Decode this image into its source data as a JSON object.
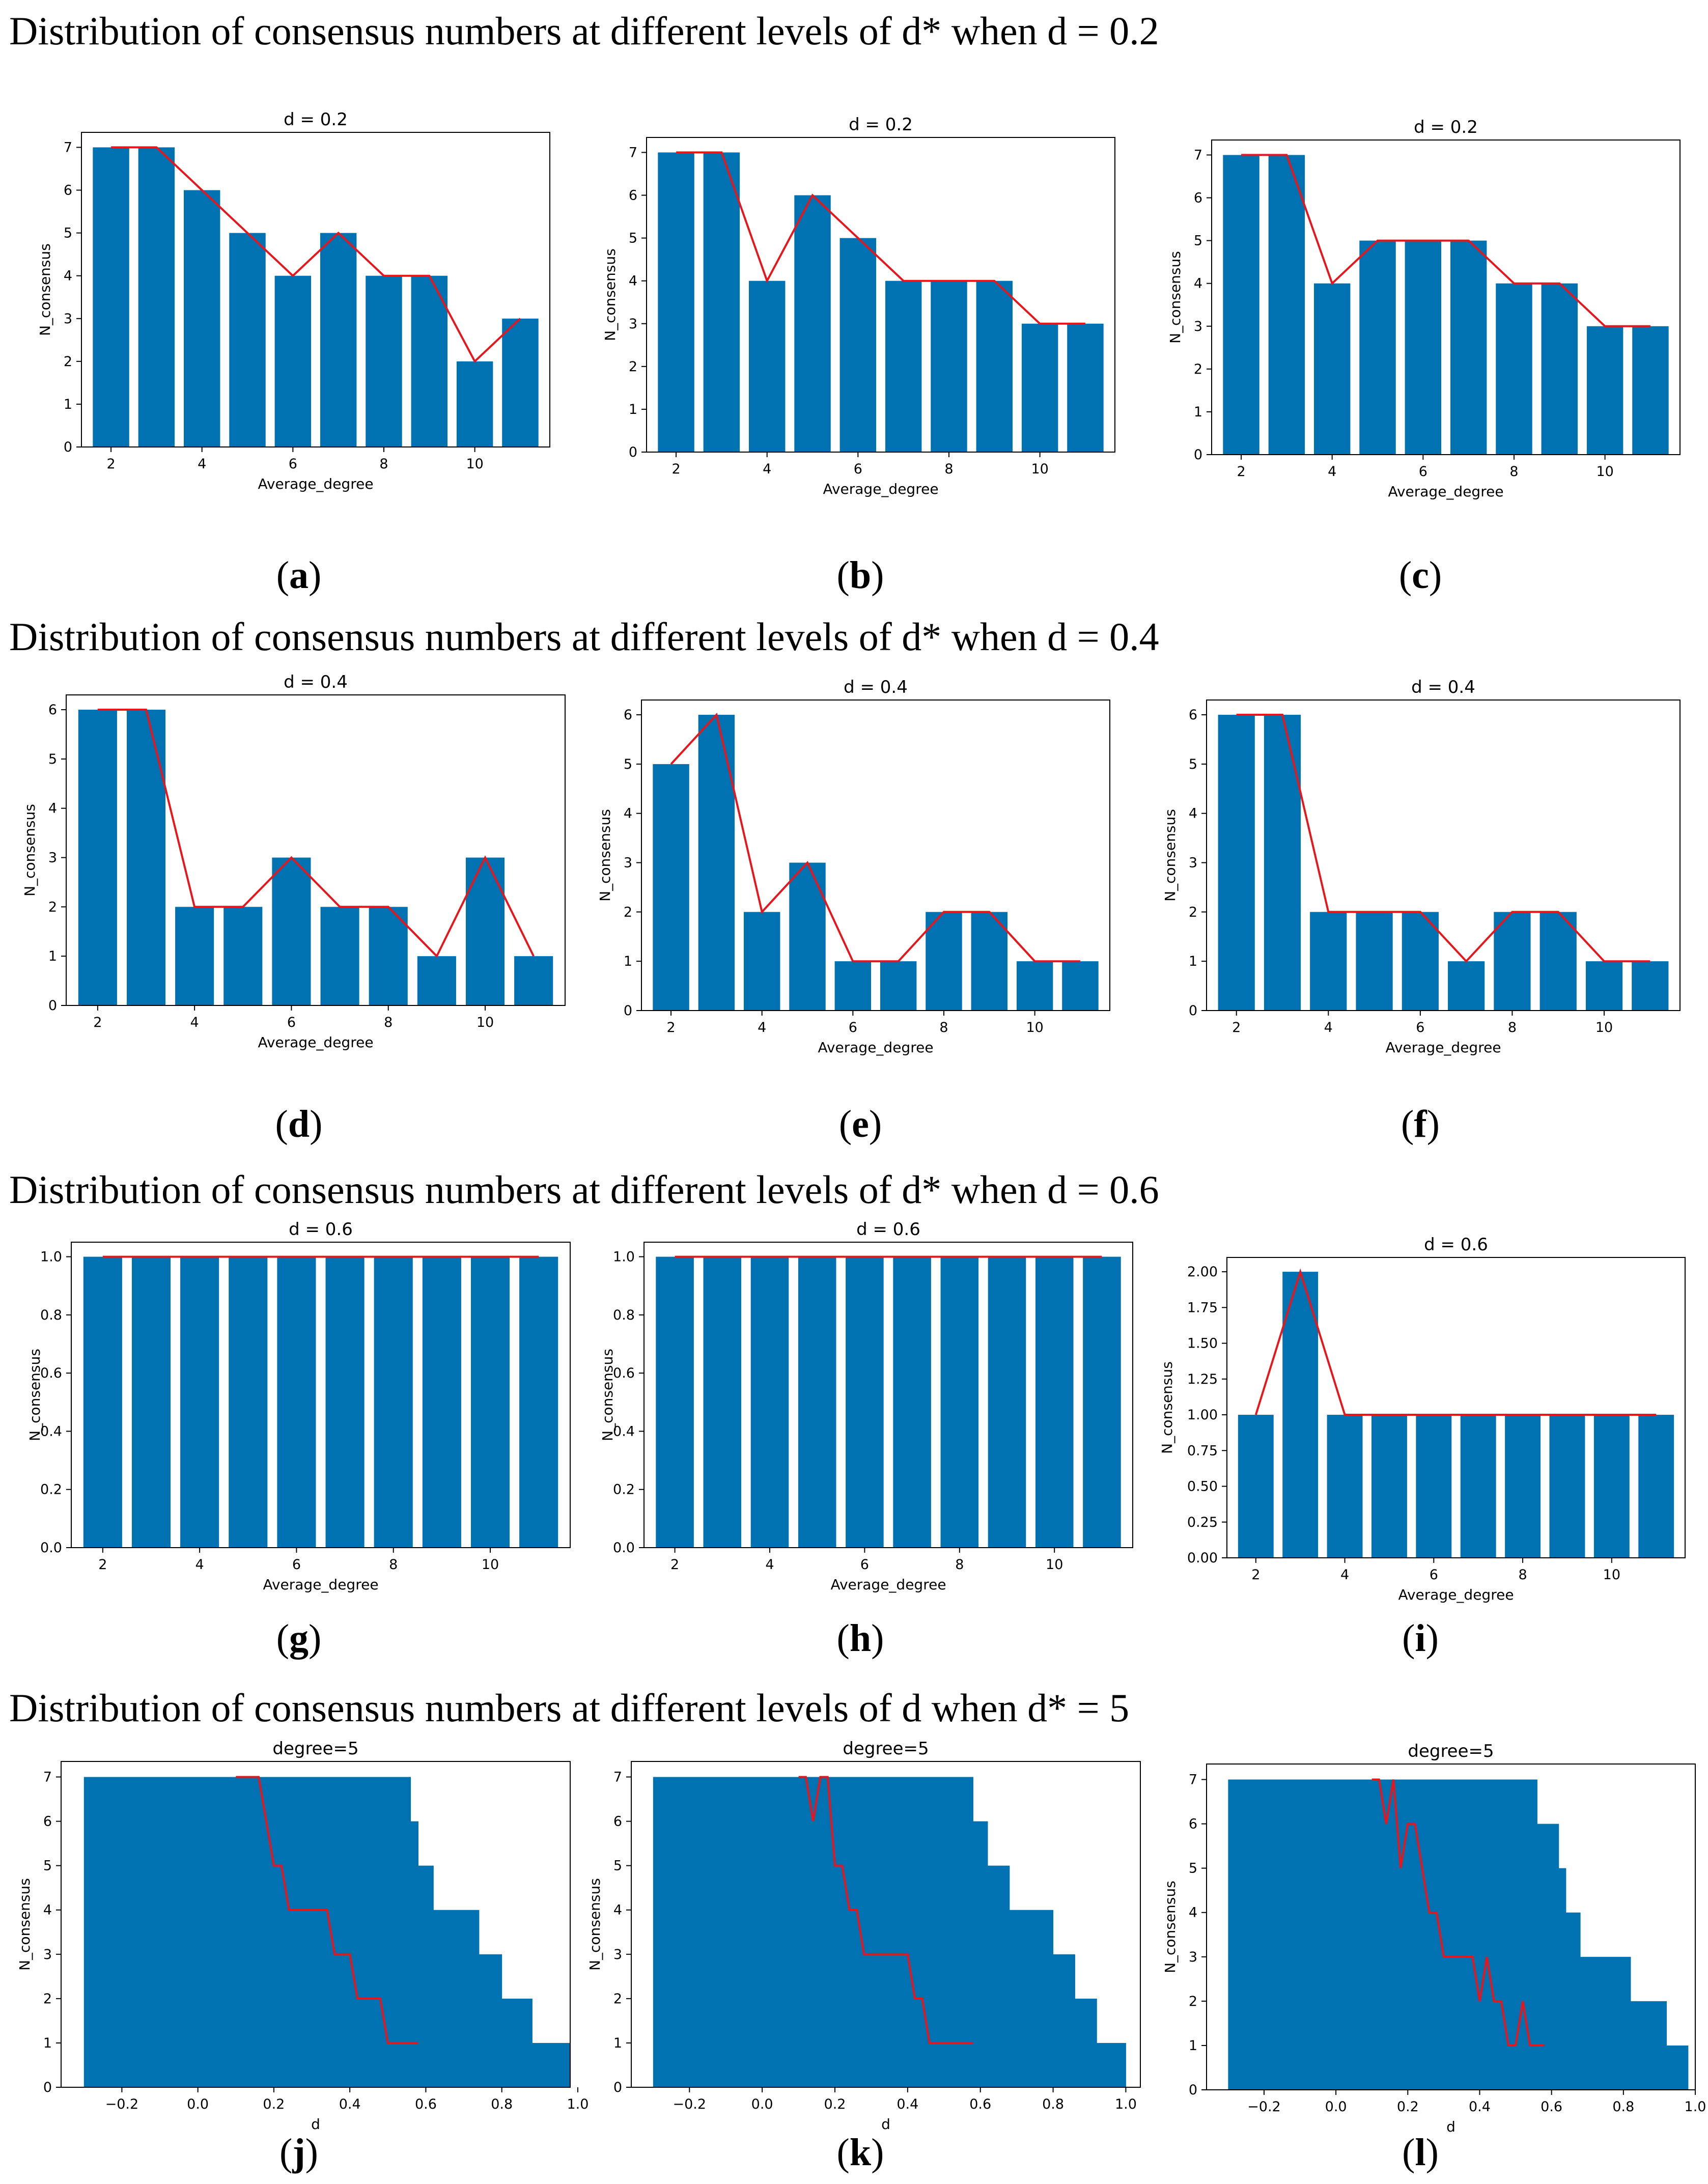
{
  "headings": [
    "Distribution of consensus numbers at different levels of d* when d = 0.2",
    "Distribution of consensus numbers at different levels of d* when d = 0.4",
    "Distribution of consensus numbers at different levels of d* when d = 0.6",
    "Distribution of consensus numbers at different levels of d when d* = 5"
  ],
  "chart_data": [
    {
      "id": "a",
      "caption": "a",
      "type": "bar",
      "title": "d = 0.2",
      "xlabel": "Average_degree",
      "ylabel": "N_consensus",
      "x": [
        2,
        3,
        4,
        5,
        6,
        7,
        8,
        9,
        10,
        11
      ],
      "values": [
        7,
        7,
        6,
        5,
        4,
        5,
        4,
        4,
        2,
        3
      ],
      "line_x": [
        2,
        3,
        4,
        5,
        6,
        7,
        8,
        9,
        10,
        11
      ],
      "line_y": [
        7,
        7,
        6,
        5,
        4,
        5,
        4,
        4,
        2,
        3
      ],
      "xlim": [
        1.35,
        11.65
      ],
      "ylim": [
        0,
        7.35
      ],
      "xticks": [
        2,
        4,
        6,
        8,
        10
      ],
      "xtick_labels": [
        "2",
        "4",
        "6",
        "8",
        "10"
      ],
      "yticks": [
        0,
        1,
        2,
        3,
        4,
        5,
        6,
        7
      ],
      "ytick_labels": [
        "0",
        "1",
        "2",
        "3",
        "4",
        "5",
        "6",
        "7"
      ]
    },
    {
      "id": "b",
      "caption": "b",
      "type": "bar",
      "title": "d = 0.2",
      "xlabel": "Average_degree",
      "ylabel": "N_consensus",
      "x": [
        2,
        3,
        4,
        5,
        6,
        7,
        8,
        9,
        10,
        11
      ],
      "values": [
        7,
        7,
        4,
        6,
        5,
        4,
        4,
        4,
        3,
        3
      ],
      "line_x": [
        2,
        3,
        4,
        5,
        6,
        7,
        8,
        9,
        10,
        11
      ],
      "line_y": [
        7,
        7,
        4,
        6,
        5,
        4,
        4,
        4,
        3,
        3
      ],
      "xlim": [
        1.35,
        11.65
      ],
      "ylim": [
        0,
        7.35
      ],
      "xticks": [
        2,
        4,
        6,
        8,
        10
      ],
      "xtick_labels": [
        "2",
        "4",
        "6",
        "8",
        "10"
      ],
      "yticks": [
        0,
        1,
        2,
        3,
        4,
        5,
        6,
        7
      ],
      "ytick_labels": [
        "0",
        "1",
        "2",
        "3",
        "4",
        "5",
        "6",
        "7"
      ]
    },
    {
      "id": "c",
      "caption": "c",
      "type": "bar",
      "title": "d = 0.2",
      "xlabel": "Average_degree",
      "ylabel": "N_consensus",
      "x": [
        2,
        3,
        4,
        5,
        6,
        7,
        8,
        9,
        10,
        11
      ],
      "values": [
        7,
        7,
        4,
        5,
        5,
        5,
        4,
        4,
        3,
        3
      ],
      "line_x": [
        2,
        3,
        4,
        5,
        6,
        7,
        8,
        9,
        10,
        11
      ],
      "line_y": [
        7,
        7,
        4,
        5,
        5,
        5,
        4,
        4,
        3,
        3
      ],
      "xlim": [
        1.35,
        11.65
      ],
      "ylim": [
        0,
        7.35
      ],
      "xticks": [
        2,
        4,
        6,
        8,
        10
      ],
      "xtick_labels": [
        "2",
        "4",
        "6",
        "8",
        "10"
      ],
      "yticks": [
        0,
        1,
        2,
        3,
        4,
        5,
        6,
        7
      ],
      "ytick_labels": [
        "0",
        "1",
        "2",
        "3",
        "4",
        "5",
        "6",
        "7"
      ]
    },
    {
      "id": "d",
      "caption": "d",
      "type": "bar",
      "title": "d = 0.4",
      "xlabel": "Average_degree",
      "ylabel": "N_consensus",
      "x": [
        2,
        3,
        4,
        5,
        6,
        7,
        8,
        9,
        10,
        11
      ],
      "values": [
        6,
        6,
        2,
        2,
        3,
        2,
        2,
        1,
        3,
        1
      ],
      "line_x": [
        2,
        3,
        4,
        5,
        6,
        7,
        8,
        9,
        10,
        11
      ],
      "line_y": [
        6,
        6,
        2,
        2,
        3,
        2,
        2,
        1,
        3,
        1
      ],
      "xlim": [
        1.35,
        11.65
      ],
      "ylim": [
        0,
        6.3
      ],
      "xticks": [
        2,
        4,
        6,
        8,
        10
      ],
      "xtick_labels": [
        "2",
        "4",
        "6",
        "8",
        "10"
      ],
      "yticks": [
        0,
        1,
        2,
        3,
        4,
        5,
        6
      ],
      "ytick_labels": [
        "0",
        "1",
        "2",
        "3",
        "4",
        "5",
        "6"
      ]
    },
    {
      "id": "e",
      "caption": "e",
      "type": "bar",
      "title": "d = 0.4",
      "xlabel": "Average_degree",
      "ylabel": "N_consensus",
      "x": [
        2,
        3,
        4,
        5,
        6,
        7,
        8,
        9,
        10,
        11
      ],
      "values": [
        5,
        6,
        2,
        3,
        1,
        1,
        2,
        2,
        1,
        1
      ],
      "line_x": [
        2,
        3,
        4,
        5,
        6,
        7,
        8,
        9,
        10,
        11
      ],
      "line_y": [
        5,
        6,
        2,
        3,
        1,
        1,
        2,
        2,
        1,
        1
      ],
      "xlim": [
        1.35,
        11.65
      ],
      "ylim": [
        0,
        6.3
      ],
      "xticks": [
        2,
        4,
        6,
        8,
        10
      ],
      "xtick_labels": [
        "2",
        "4",
        "6",
        "8",
        "10"
      ],
      "yticks": [
        0,
        1,
        2,
        3,
        4,
        5,
        6
      ],
      "ytick_labels": [
        "0",
        "1",
        "2",
        "3",
        "4",
        "5",
        "6"
      ]
    },
    {
      "id": "f",
      "caption": "f",
      "type": "bar",
      "title": "d = 0.4",
      "xlabel": "Average_degree",
      "ylabel": "N_consensus",
      "x": [
        2,
        3,
        4,
        5,
        6,
        7,
        8,
        9,
        10,
        11
      ],
      "values": [
        6,
        6,
        2,
        2,
        2,
        1,
        2,
        2,
        1,
        1
      ],
      "line_x": [
        2,
        3,
        4,
        5,
        6,
        7,
        8,
        9,
        10,
        11
      ],
      "line_y": [
        6,
        6,
        2,
        2,
        2,
        1,
        2,
        2,
        1,
        1
      ],
      "xlim": [
        1.35,
        11.65
      ],
      "ylim": [
        0,
        6.3
      ],
      "xticks": [
        2,
        4,
        6,
        8,
        10
      ],
      "xtick_labels": [
        "2",
        "4",
        "6",
        "8",
        "10"
      ],
      "yticks": [
        0,
        1,
        2,
        3,
        4,
        5,
        6
      ],
      "ytick_labels": [
        "0",
        "1",
        "2",
        "3",
        "4",
        "5",
        "6"
      ]
    },
    {
      "id": "g",
      "caption": "g",
      "type": "bar",
      "title": "d = 0.6",
      "xlabel": "Average_degree",
      "ylabel": "N_consensus",
      "x": [
        2,
        3,
        4,
        5,
        6,
        7,
        8,
        9,
        10,
        11
      ],
      "values": [
        1,
        1,
        1,
        1,
        1,
        1,
        1,
        1,
        1,
        1
      ],
      "line_x": [
        2,
        3,
        4,
        5,
        6,
        7,
        8,
        9,
        10,
        11
      ],
      "line_y": [
        1,
        1,
        1,
        1,
        1,
        1,
        1,
        1,
        1,
        1
      ],
      "xlim": [
        1.35,
        11.65
      ],
      "ylim": [
        0,
        1.05
      ],
      "xticks": [
        2,
        4,
        6,
        8,
        10
      ],
      "xtick_labels": [
        "2",
        "4",
        "6",
        "8",
        "10"
      ],
      "yticks": [
        0,
        0.2,
        0.4,
        0.6,
        0.8,
        1.0
      ],
      "ytick_labels": [
        "0.0",
        "0.2",
        "0.4",
        "0.6",
        "0.8",
        "1.0"
      ]
    },
    {
      "id": "h",
      "caption": "h",
      "type": "bar",
      "title": "d = 0.6",
      "xlabel": "Average_degree",
      "ylabel": "N_consensus",
      "x": [
        2,
        3,
        4,
        5,
        6,
        7,
        8,
        9,
        10,
        11
      ],
      "values": [
        1,
        1,
        1,
        1,
        1,
        1,
        1,
        1,
        1,
        1
      ],
      "line_x": [
        2,
        3,
        4,
        5,
        6,
        7,
        8,
        9,
        10,
        11
      ],
      "line_y": [
        1,
        1,
        1,
        1,
        1,
        1,
        1,
        1,
        1,
        1
      ],
      "xlim": [
        1.35,
        11.65
      ],
      "ylim": [
        0,
        1.05
      ],
      "xticks": [
        2,
        4,
        6,
        8,
        10
      ],
      "xtick_labels": [
        "2",
        "4",
        "6",
        "8",
        "10"
      ],
      "yticks": [
        0,
        0.2,
        0.4,
        0.6,
        0.8,
        1.0
      ],
      "ytick_labels": [
        "0.0",
        "0.2",
        "0.4",
        "0.6",
        "0.8",
        "1.0"
      ]
    },
    {
      "id": "i",
      "caption": "i",
      "type": "bar",
      "title": "d = 0.6",
      "xlabel": "Average_degree",
      "ylabel": "N_consensus",
      "x": [
        2,
        3,
        4,
        5,
        6,
        7,
        8,
        9,
        10,
        11
      ],
      "values": [
        1,
        2,
        1,
        1,
        1,
        1,
        1,
        1,
        1,
        1
      ],
      "line_x": [
        2,
        3,
        4,
        5,
        6,
        7,
        8,
        9,
        10,
        11
      ],
      "line_y": [
        1,
        2,
        1,
        1,
        1,
        1,
        1,
        1,
        1,
        1
      ],
      "xlim": [
        1.35,
        11.65
      ],
      "ylim": [
        0,
        2.1
      ],
      "xticks": [
        2,
        4,
        6,
        8,
        10
      ],
      "xtick_labels": [
        "2",
        "4",
        "6",
        "8",
        "10"
      ],
      "yticks": [
        0,
        0.25,
        0.5,
        0.75,
        1.0,
        1.25,
        1.5,
        1.75,
        2.0
      ],
      "ytick_labels": [
        "0.00",
        "0.25",
        "0.50",
        "0.75",
        "1.00",
        "1.25",
        "1.50",
        "1.75",
        "2.00"
      ]
    },
    {
      "id": "j",
      "caption": "j",
      "type": "step",
      "title": "degree=5",
      "xlabel": "d",
      "ylabel": "N_consensus",
      "steps": [
        [
          -0.3,
          0.56,
          7
        ],
        [
          0.56,
          0.58,
          6
        ],
        [
          0.58,
          0.62,
          5
        ],
        [
          0.62,
          0.74,
          4
        ],
        [
          0.74,
          0.8,
          3
        ],
        [
          0.8,
          0.88,
          2
        ],
        [
          0.88,
          0.98,
          1
        ]
      ],
      "line_x": [
        0.1,
        0.16,
        0.18,
        0.2,
        0.22,
        0.24,
        0.34,
        0.36,
        0.4,
        0.42,
        0.48,
        0.5,
        0.58
      ],
      "line_y": [
        7,
        7,
        6,
        5,
        5,
        4,
        4,
        3,
        3,
        2,
        2,
        1,
        1
      ],
      "xlim": [
        -0.36,
        0.98
      ],
      "ylim": [
        0,
        7.35
      ],
      "xticks": [
        -0.2,
        0.0,
        0.2,
        0.4,
        0.6,
        0.8,
        1.0
      ],
      "xtick_labels": [
        "−0.2",
        "0.0",
        "0.2",
        "0.4",
        "0.6",
        "0.8",
        "1.0"
      ],
      "yticks": [
        0,
        1,
        2,
        3,
        4,
        5,
        6,
        7
      ],
      "ytick_labels": [
        "0",
        "1",
        "2",
        "3",
        "4",
        "5",
        "6",
        "7"
      ]
    },
    {
      "id": "k",
      "caption": "k",
      "type": "step",
      "title": "degree=5",
      "xlabel": "d",
      "ylabel": "N_consensus",
      "steps": [
        [
          -0.3,
          0.58,
          7
        ],
        [
          0.58,
          0.62,
          6
        ],
        [
          0.62,
          0.68,
          5
        ],
        [
          0.68,
          0.8,
          4
        ],
        [
          0.8,
          0.86,
          3
        ],
        [
          0.86,
          0.92,
          2
        ],
        [
          0.92,
          1.0,
          1
        ]
      ],
      "line_x": [
        0.1,
        0.12,
        0.14,
        0.16,
        0.18,
        0.2,
        0.22,
        0.24,
        0.26,
        0.28,
        0.3,
        0.4,
        0.42,
        0.44,
        0.46,
        0.48,
        0.58
      ],
      "line_y": [
        7,
        7,
        6,
        7,
        7,
        5,
        5,
        4,
        4,
        3,
        3,
        3,
        2,
        2,
        1,
        1,
        1
      ],
      "xlim": [
        -0.36,
        1.04
      ],
      "ylim": [
        0,
        7.35
      ],
      "xticks": [
        -0.2,
        0.0,
        0.2,
        0.4,
        0.6,
        0.8,
        1.0
      ],
      "xtick_labels": [
        "−0.2",
        "0.0",
        "0.2",
        "0.4",
        "0.6",
        "0.8",
        "1.0"
      ],
      "yticks": [
        0,
        1,
        2,
        3,
        4,
        5,
        6,
        7
      ],
      "ytick_labels": [
        "0",
        "1",
        "2",
        "3",
        "4",
        "5",
        "6",
        "7"
      ]
    },
    {
      "id": "l",
      "caption": "l",
      "type": "step",
      "title": "degree=5",
      "xlabel": "d",
      "ylabel": "N_consensus",
      "steps": [
        [
          -0.3,
          0.56,
          7
        ],
        [
          0.56,
          0.62,
          6
        ],
        [
          0.62,
          0.64,
          5
        ],
        [
          0.64,
          0.68,
          4
        ],
        [
          0.68,
          0.82,
          3
        ],
        [
          0.82,
          0.92,
          2
        ],
        [
          0.92,
          0.98,
          1
        ]
      ],
      "line_x": [
        0.1,
        0.12,
        0.14,
        0.16,
        0.18,
        0.2,
        0.22,
        0.24,
        0.26,
        0.28,
        0.3,
        0.38,
        0.4,
        0.42,
        0.44,
        0.46,
        0.48,
        0.5,
        0.52,
        0.54,
        0.58
      ],
      "line_y": [
        7,
        7,
        6,
        7,
        5,
        6,
        6,
        5,
        4,
        4,
        3,
        3,
        2,
        3,
        2,
        2,
        1,
        1,
        2,
        1,
        1
      ],
      "xlim": [
        -0.36,
        1.0
      ],
      "ylim": [
        0,
        7.35
      ],
      "xticks": [
        -0.2,
        0.0,
        0.2,
        0.4,
        0.6,
        0.8,
        1.0
      ],
      "xtick_labels": [
        "−0.2",
        "0.0",
        "0.2",
        "0.4",
        "0.6",
        "0.8",
        "1.0"
      ],
      "yticks": [
        0,
        1,
        2,
        3,
        4,
        5,
        6,
        7
      ],
      "ytick_labels": [
        "0",
        "1",
        "2",
        "3",
        "4",
        "5",
        "6",
        "7"
      ]
    }
  ]
}
